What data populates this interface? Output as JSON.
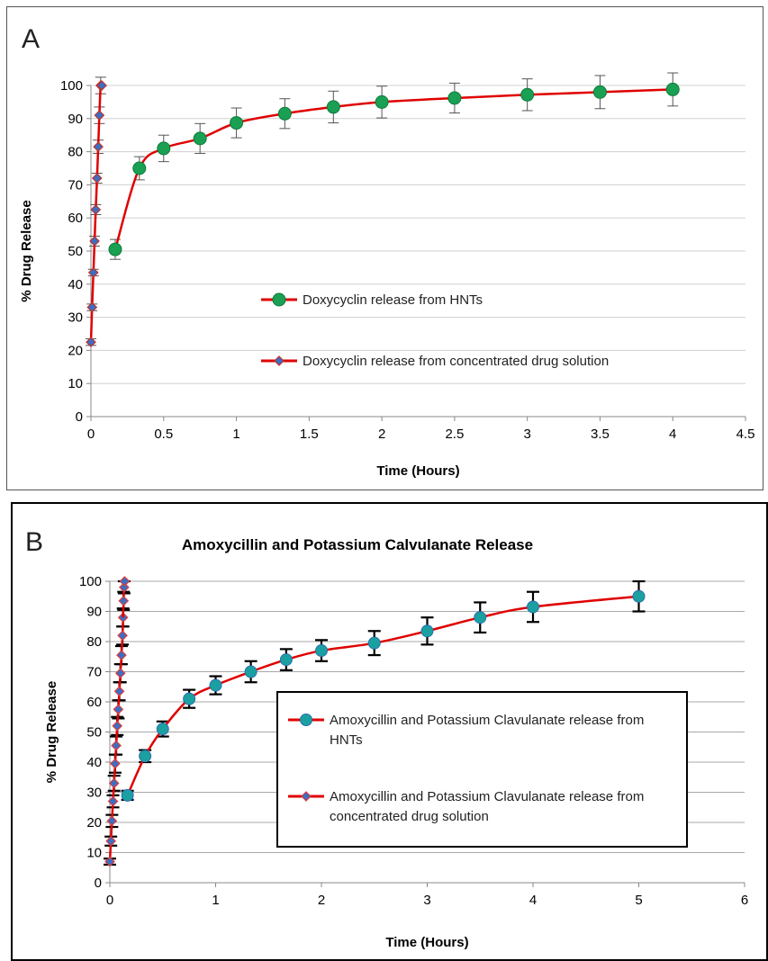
{
  "chart_data": [
    {
      "panel_label": "A",
      "type": "line",
      "title": "",
      "xlabel": "Time (Hours)",
      "ylabel": "% Drug  Release",
      "xlim": [
        0,
        4.5
      ],
      "ylim": [
        0,
        100
      ],
      "x_ticks": [
        "0",
        "0.5",
        "1",
        "1.5",
        "2",
        "2.5",
        "3",
        "3.5",
        "4",
        "4.5"
      ],
      "y_ticks": [
        "0",
        "10",
        "20",
        "30",
        "40",
        "50",
        "60",
        "70",
        "80",
        "90",
        "100"
      ],
      "grid": "horizontal",
      "legend_position": "center",
      "line_color": "#e00000",
      "series": [
        {
          "name": "Doxycyclin release from HNTs",
          "marker": "circle",
          "marker_color": "#1aa053",
          "x": [
            0.167,
            0.333,
            0.5,
            0.75,
            1.0,
            1.333,
            1.667,
            2.0,
            2.5,
            3.0,
            3.5,
            4.0
          ],
          "y": [
            50.5,
            75,
            81,
            84,
            88.7,
            91.5,
            93.5,
            95,
            96.2,
            97.2,
            98,
            98.8
          ],
          "err": [
            3,
            3.5,
            4,
            4.5,
            4.5,
            4.5,
            4.8,
            4.8,
            4.5,
            4.8,
            5,
            5
          ]
        },
        {
          "name": "Doxycyclin release from concentrated drug solution",
          "marker": "diamond",
          "marker_color": "#3a6fc4",
          "x": [
            0.0,
            0.008,
            0.017,
            0.025,
            0.033,
            0.042,
            0.05,
            0.058,
            0.067,
            0.075
          ],
          "y": [
            22.5,
            33,
            43.5,
            53,
            62.5,
            72,
            81.5,
            91,
            100,
            100
          ],
          "err": [
            1,
            1,
            1,
            1.5,
            1.5,
            1.5,
            2,
            2.5,
            2.5,
            0
          ]
        }
      ]
    },
    {
      "panel_label": "B",
      "type": "line",
      "title": "Amoxycillin and Potassium Calvulanate Release",
      "xlabel": "Time (Hours)",
      "ylabel": "% Drug Release",
      "xlim": [
        0,
        6
      ],
      "ylim": [
        0,
        100
      ],
      "x_ticks": [
        "0",
        "1",
        "2",
        "3",
        "4",
        "5",
        "6"
      ],
      "y_ticks": [
        "0",
        "10",
        "20",
        "30",
        "40",
        "50",
        "60",
        "70",
        "80",
        "90",
        "100"
      ],
      "grid": "horizontal",
      "legend_position": "center-right",
      "line_color": "#e00000",
      "series": [
        {
          "name": "Amoxycillin  and Potassium  Clavulanate release from HNTs",
          "marker": "circle",
          "marker_color": "#1aa0a0",
          "x": [
            0.167,
            0.333,
            0.5,
            0.75,
            1.0,
            1.333,
            1.667,
            2.0,
            2.5,
            3.0,
            3.5,
            4.0,
            5.0
          ],
          "y": [
            29,
            42,
            51,
            61,
            65.5,
            70,
            74,
            77,
            79.5,
            83.5,
            88,
            91.5,
            95
          ],
          "err": [
            1.5,
            2,
            2.5,
            3,
            3,
            3.5,
            3.5,
            3.5,
            4,
            4.5,
            5,
            5,
            5
          ]
        },
        {
          "name": "Amoxycillin  and Potassium  Clavulanate release from concentrated  drug solution",
          "marker": "diamond",
          "marker_color": "#3a6fc4",
          "x": [
            0.0,
            0.01,
            0.02,
            0.03,
            0.04,
            0.05,
            0.06,
            0.07,
            0.08,
            0.09,
            0.1,
            0.11,
            0.12,
            0.125
          ],
          "y": [
            7,
            13.8,
            20.5,
            27,
            33,
            39.5,
            45.5,
            52,
            57.5,
            63.5,
            69.5,
            75.5,
            82,
            88
          ],
          "err": [
            1,
            1.5,
            2,
            2,
            2.5,
            3,
            3,
            3,
            3,
            3,
            3,
            3,
            3,
            3
          ]
        },
        {
          "name": "",
          "marker": "diamond",
          "marker_color": "#3a6fc4",
          "x": [
            0.13,
            0.135,
            0.14
          ],
          "y": [
            93.5,
            98,
            100
          ],
          "err": [
            3,
            2,
            0
          ],
          "continuation": true
        }
      ]
    }
  ]
}
